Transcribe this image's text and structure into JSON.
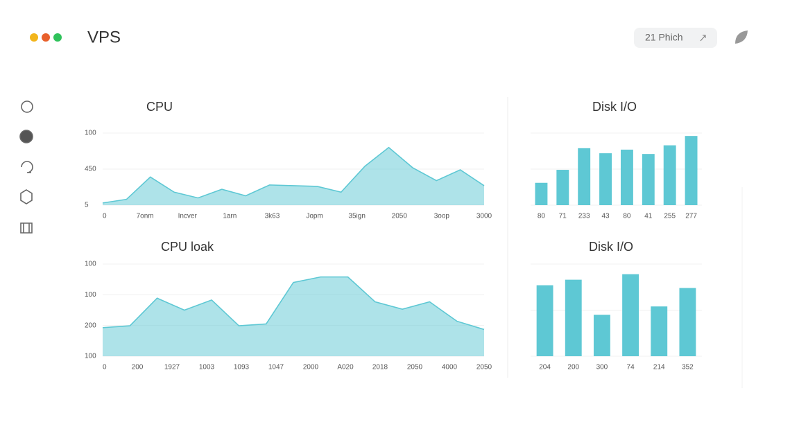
{
  "header": {
    "title": "VPS",
    "badge": "21 Phich"
  },
  "panels": [
    {
      "type": "area",
      "title": "CPU",
      "color": "#5ec8d4",
      "ylim": [
        0,
        100
      ],
      "y_labels": [
        "100",
        "450",
        "5"
      ],
      "x_labels": [
        "0",
        "7onm",
        "Incver",
        "1arn",
        "3k63",
        "Jopm",
        "35ign",
        "2050",
        "3oop",
        "3000"
      ],
      "values": [
        3,
        8,
        39,
        18,
        10,
        22,
        13,
        28,
        27,
        26,
        18,
        54,
        80,
        52,
        34,
        49,
        27
      ]
    },
    {
      "type": "area",
      "title": "CPU loak",
      "color": "#5ec8d4",
      "ylim": [
        0,
        100
      ],
      "y_labels": [
        "100",
        "100",
        "200",
        "100"
      ],
      "x_labels": [
        "0",
        "200",
        "1927",
        "1003",
        "1093",
        "1047",
        "2000",
        "A020",
        "2018",
        "2050",
        "4000",
        "2050"
      ],
      "values": [
        31,
        33,
        63,
        50,
        61,
        33,
        35,
        80,
        86,
        86,
        59,
        51,
        59,
        38,
        29
      ]
    },
    {
      "type": "bar",
      "title": "Disk I/O",
      "color": "#5ec8d4",
      "ylim": [
        0,
        100
      ],
      "x_labels": [
        "80",
        "71",
        "233",
        "43",
        "80",
        "41",
        "255",
        "277"
      ],
      "values": [
        31,
        49,
        79,
        72,
        77,
        71,
        83,
        96
      ]
    },
    {
      "type": "bar",
      "title": "Disk I/O",
      "color": "#5ec8d4",
      "ylim": [
        0,
        100
      ],
      "x_labels": [
        "204",
        "200",
        "300",
        "74",
        "214",
        "352"
      ],
      "values": [
        77,
        83,
        45,
        89,
        54,
        74
      ]
    }
  ]
}
